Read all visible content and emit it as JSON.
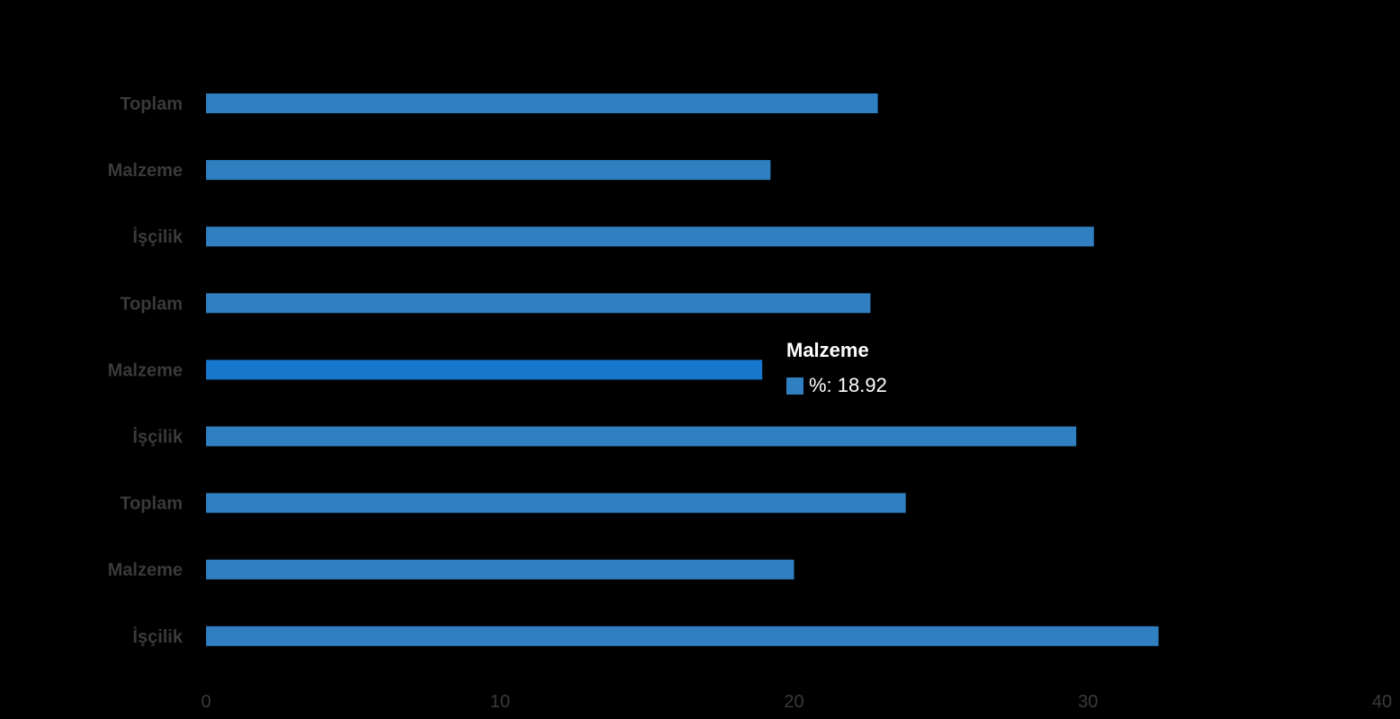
{
  "chart_data": {
    "type": "bar",
    "orientation": "horizontal",
    "categories": [
      "Toplam",
      "Malzeme",
      "İşçilik",
      "Toplam",
      "Malzeme",
      "İşçilik",
      "Toplam",
      "Malzeme",
      "İşçilik"
    ],
    "values": [
      22.85,
      19.2,
      30.2,
      22.6,
      18.92,
      29.6,
      23.8,
      20.0,
      32.4
    ],
    "xlim": [
      0,
      40
    ],
    "xticks": [
      "0",
      "10",
      "20",
      "30",
      "40"
    ],
    "highlighted_index": 4,
    "title": "",
    "xlabel": "",
    "ylabel": "",
    "grid": false,
    "colors": {
      "bar": "#2f7fc1",
      "bar_highlight": "#1677cc",
      "background": "#000000",
      "label": "#3a3a3a"
    }
  },
  "tooltip": {
    "title": "Malzeme",
    "label": "%",
    "value": "18.92",
    "text": "%: 18.92",
    "swatch_color": "#2f7fc1"
  }
}
